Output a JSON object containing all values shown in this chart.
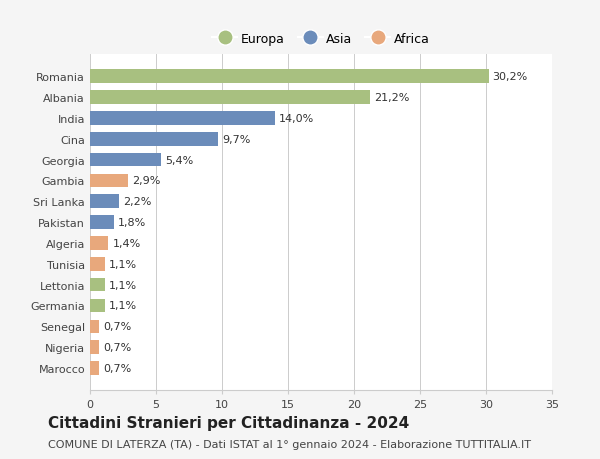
{
  "categories": [
    "Marocco",
    "Nigeria",
    "Senegal",
    "Germania",
    "Lettonia",
    "Tunisia",
    "Algeria",
    "Pakistan",
    "Sri Lanka",
    "Gambia",
    "Georgia",
    "Cina",
    "India",
    "Albania",
    "Romania"
  ],
  "values": [
    0.7,
    0.7,
    0.7,
    1.1,
    1.1,
    1.1,
    1.4,
    1.8,
    2.2,
    2.9,
    5.4,
    9.7,
    14.0,
    21.2,
    30.2
  ],
  "labels": [
    "0,7%",
    "0,7%",
    "0,7%",
    "1,1%",
    "1,1%",
    "1,1%",
    "1,4%",
    "1,8%",
    "2,2%",
    "2,9%",
    "5,4%",
    "9,7%",
    "14,0%",
    "21,2%",
    "30,2%"
  ],
  "continent": [
    "Africa",
    "Africa",
    "Africa",
    "Europa",
    "Europa",
    "Africa",
    "Africa",
    "Asia",
    "Asia",
    "Africa",
    "Asia",
    "Asia",
    "Asia",
    "Europa",
    "Europa"
  ],
  "colors": {
    "Europa": "#a8c080",
    "Asia": "#6b8cba",
    "Africa": "#e8a87c"
  },
  "xlim": [
    0,
    35
  ],
  "xticks": [
    0,
    5,
    10,
    15,
    20,
    25,
    30,
    35
  ],
  "title": "Cittadini Stranieri per Cittadinanza - 2024",
  "subtitle": "COMUNE DI LATERZA (TA) - Dati ISTAT al 1° gennaio 2024 - Elaborazione TUTTITALIA.IT",
  "background_color": "#f5f5f5",
  "plot_background": "#ffffff",
  "bar_height": 0.65,
  "title_fontsize": 11,
  "subtitle_fontsize": 8,
  "label_fontsize": 8,
  "tick_fontsize": 8,
  "legend_fontsize": 9
}
